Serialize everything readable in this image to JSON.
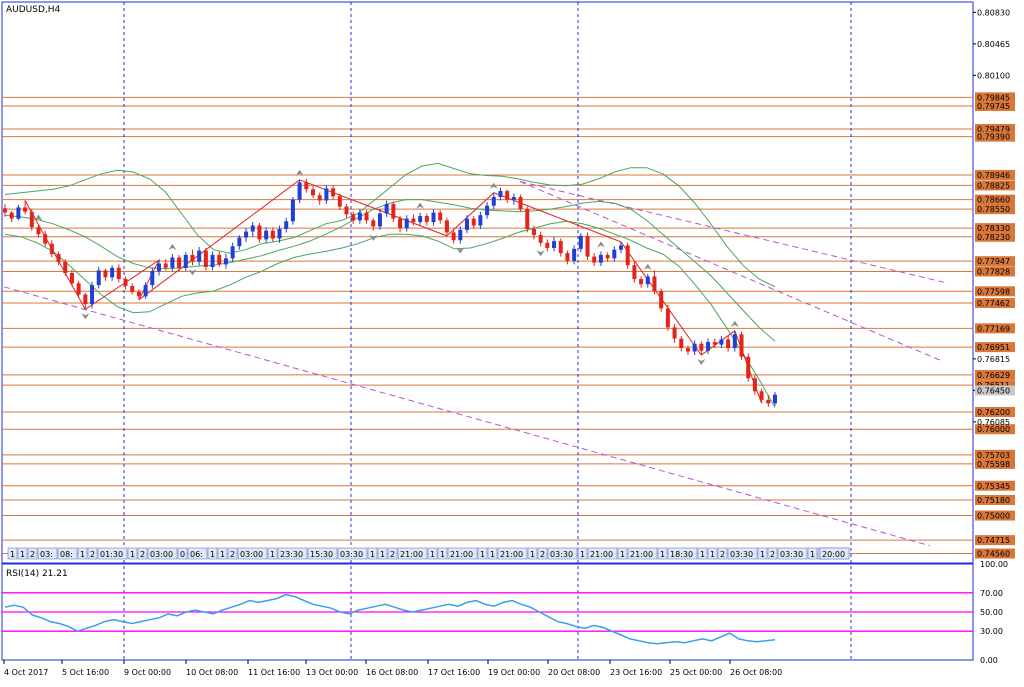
{
  "symbol_title": "AUDUSD,H4",
  "rsi_title": "RSI(14) 21.21",
  "colors": {
    "frame": "#1e2cd6",
    "bull_candle": "#1f3fd6",
    "bear_candle": "#e3241c",
    "level_line": "#d9773a",
    "band": "#4aa564",
    "trend_line": "#b454d6",
    "period_sep": "#2430d6",
    "rsi_line": "#3aa0e6",
    "rsi_level": "#ff00ff",
    "fractal": "#888888",
    "zigzag": "#e3241c"
  },
  "chart_data": {
    "type": "candlestick",
    "symbol": "AUDUSD",
    "timeframe": "H4",
    "ylim": [
      0.7445,
      0.8095
    ],
    "price_axis_ticks": [
      0.8083,
      0.80465,
      0.801,
      0.76815,
      0.7645,
      0.76085
    ],
    "horizontal_levels": [
      "0.79845",
      "0.79745",
      "0.79479",
      "0.79390",
      "0.78946",
      "0.78825",
      "0.78660",
      "0.78550",
      "0.78330",
      "0.78230",
      "0.77947",
      "0.77828",
      "0.77598",
      "0.77462",
      "0.77169",
      "0.76951",
      "0.76629",
      "0.76511",
      "0.76200",
      "0.76000",
      "0.75703",
      "0.75598",
      "0.75345",
      "0.75180",
      "0.75000",
      "0.74715",
      "0.74560"
    ],
    "current_price": "0.76450",
    "time_labels": [
      "4 Oct 2017",
      "5 Oct 16:00",
      "9 Oct 00:00",
      "10 Oct 08:00",
      "11 Oct 16:00",
      "13 Oct 00:00",
      "16 Oct 08:00",
      "17 Oct 16:00",
      "19 Oct 00:00",
      "20 Oct 08:00",
      "23 Oct 16:00",
      "25 Oct 00:00",
      "26 Oct 08:00"
    ],
    "time_markers": [
      "1",
      "1",
      "2",
      "03:",
      "08:",
      "1",
      "2",
      "01:30",
      "1",
      "2",
      "03:00",
      "0",
      "06:",
      "1",
      "1",
      "2",
      "03:00",
      "1",
      "23:30",
      "15:30",
      "03:30",
      "1",
      "1",
      "2",
      "21:00",
      "1",
      "1",
      "21:00",
      "1",
      "1",
      "21:00",
      "1",
      "2",
      "03:30",
      "1",
      "21:00",
      "1",
      "21:00",
      "1",
      "18:30",
      "1",
      "1",
      "2",
      "03:30",
      "1",
      "2",
      "03:30",
      "1",
      "2",
      "03:30",
      "1",
      "20:00"
    ],
    "candles": [
      [
        0.7856,
        0.7861,
        0.7846,
        0.7851
      ],
      [
        0.7851,
        0.7853,
        0.784,
        0.7844
      ],
      [
        0.7844,
        0.786,
        0.7842,
        0.7857
      ],
      [
        0.7857,
        0.7865,
        0.7849,
        0.7852
      ],
      [
        0.7852,
        0.7855,
        0.783,
        0.7834
      ],
      [
        0.7834,
        0.7837,
        0.7822,
        0.7826
      ],
      [
        0.7826,
        0.783,
        0.7812,
        0.7815
      ],
      [
        0.7815,
        0.7819,
        0.7799,
        0.7803
      ],
      [
        0.7803,
        0.7806,
        0.779,
        0.7794
      ],
      [
        0.7794,
        0.7797,
        0.7778,
        0.7781
      ],
      [
        0.7781,
        0.7785,
        0.7766,
        0.7769
      ],
      [
        0.7769,
        0.7772,
        0.7752,
        0.7756
      ],
      [
        0.7756,
        0.7758,
        0.7739,
        0.7745
      ],
      [
        0.7745,
        0.7771,
        0.774,
        0.7767
      ],
      [
        0.7767,
        0.7788,
        0.7763,
        0.7784
      ],
      [
        0.7784,
        0.7786,
        0.7772,
        0.7776
      ],
      [
        0.7776,
        0.779,
        0.7772,
        0.7787
      ],
      [
        0.7787,
        0.7791,
        0.777,
        0.7774
      ],
      [
        0.7774,
        0.7777,
        0.7762,
        0.7766
      ],
      [
        0.7766,
        0.7769,
        0.7756,
        0.7759
      ],
      [
        0.7759,
        0.7762,
        0.775,
        0.7754
      ],
      [
        0.7754,
        0.777,
        0.7751,
        0.7767
      ],
      [
        0.7767,
        0.7787,
        0.7763,
        0.7783
      ],
      [
        0.7783,
        0.7796,
        0.7778,
        0.7792
      ],
      [
        0.7792,
        0.7797,
        0.7784,
        0.7787
      ],
      [
        0.7787,
        0.7803,
        0.7783,
        0.7799
      ],
      [
        0.7799,
        0.7802,
        0.7783,
        0.7787
      ],
      [
        0.7787,
        0.7805,
        0.7783,
        0.7802
      ],
      [
        0.7802,
        0.7808,
        0.779,
        0.7794
      ],
      [
        0.7794,
        0.7811,
        0.779,
        0.7807
      ],
      [
        0.7807,
        0.781,
        0.7784,
        0.7788
      ],
      [
        0.7788,
        0.7806,
        0.7784,
        0.7802
      ],
      [
        0.7802,
        0.7806,
        0.7788,
        0.7791
      ],
      [
        0.7791,
        0.7803,
        0.7786,
        0.7798
      ],
      [
        0.7798,
        0.7816,
        0.7794,
        0.7812
      ],
      [
        0.7812,
        0.7825,
        0.7808,
        0.7822
      ],
      [
        0.7822,
        0.7833,
        0.7817,
        0.7829
      ],
      [
        0.7829,
        0.784,
        0.7823,
        0.7836
      ],
      [
        0.7836,
        0.7839,
        0.7816,
        0.782
      ],
      [
        0.782,
        0.7834,
        0.7816,
        0.783
      ],
      [
        0.783,
        0.7834,
        0.7817,
        0.7821
      ],
      [
        0.7821,
        0.7836,
        0.7816,
        0.7832
      ],
      [
        0.7832,
        0.7845,
        0.7828,
        0.7841
      ],
      [
        0.7841,
        0.7869,
        0.7837,
        0.7866
      ],
      [
        0.7866,
        0.7889,
        0.7862,
        0.7886
      ],
      [
        0.7886,
        0.789,
        0.7874,
        0.7878
      ],
      [
        0.7878,
        0.7882,
        0.7868,
        0.7871
      ],
      [
        0.7871,
        0.7874,
        0.786,
        0.7865
      ],
      [
        0.7865,
        0.7883,
        0.7861,
        0.7879
      ],
      [
        0.7879,
        0.7882,
        0.7866,
        0.787
      ],
      [
        0.787,
        0.7873,
        0.7854,
        0.7858
      ],
      [
        0.7858,
        0.7861,
        0.7845,
        0.7849
      ],
      [
        0.7849,
        0.7852,
        0.7838,
        0.7842
      ],
      [
        0.7842,
        0.7855,
        0.7838,
        0.7851
      ],
      [
        0.7851,
        0.7854,
        0.7838,
        0.7842
      ],
      [
        0.7842,
        0.7845,
        0.783,
        0.7835
      ],
      [
        0.7835,
        0.7855,
        0.7831,
        0.785
      ],
      [
        0.785,
        0.7865,
        0.7846,
        0.7861
      ],
      [
        0.7861,
        0.7864,
        0.784,
        0.7844
      ],
      [
        0.7844,
        0.7847,
        0.7828,
        0.7833
      ],
      [
        0.7833,
        0.7848,
        0.7829,
        0.7844
      ],
      [
        0.7844,
        0.7849,
        0.7836,
        0.784
      ],
      [
        0.784,
        0.7851,
        0.7836,
        0.7847
      ],
      [
        0.7847,
        0.785,
        0.7836,
        0.784
      ],
      [
        0.784,
        0.7855,
        0.7836,
        0.7851
      ],
      [
        0.7851,
        0.7854,
        0.7838,
        0.7842
      ],
      [
        0.7842,
        0.7845,
        0.7824,
        0.7828
      ],
      [
        0.7828,
        0.7831,
        0.7815,
        0.7819
      ],
      [
        0.7819,
        0.7835,
        0.7815,
        0.7831
      ],
      [
        0.7831,
        0.7848,
        0.7827,
        0.7844
      ],
      [
        0.7844,
        0.7847,
        0.7832,
        0.7836
      ],
      [
        0.7836,
        0.7852,
        0.7832,
        0.7848
      ],
      [
        0.7848,
        0.7863,
        0.7844,
        0.7859
      ],
      [
        0.7859,
        0.7874,
        0.7855,
        0.7869
      ],
      [
        0.7869,
        0.788,
        0.7865,
        0.7876
      ],
      [
        0.7876,
        0.7878,
        0.7862,
        0.7866
      ],
      [
        0.7866,
        0.7873,
        0.786,
        0.7869
      ],
      [
        0.7869,
        0.7872,
        0.7852,
        0.7855
      ],
      [
        0.7855,
        0.7858,
        0.7828,
        0.7832
      ],
      [
        0.7832,
        0.7836,
        0.782,
        0.7825
      ],
      [
        0.7825,
        0.7829,
        0.7812,
        0.7816
      ],
      [
        0.7816,
        0.782,
        0.7806,
        0.781
      ],
      [
        0.781,
        0.7823,
        0.7806,
        0.7818
      ],
      [
        0.7818,
        0.7821,
        0.78,
        0.7804
      ],
      [
        0.7804,
        0.7807,
        0.7791,
        0.7795
      ],
      [
        0.7795,
        0.7813,
        0.7791,
        0.7809
      ],
      [
        0.7809,
        0.7827,
        0.7805,
        0.7824
      ],
      [
        0.7824,
        0.7828,
        0.7796,
        0.78
      ],
      [
        0.78,
        0.7804,
        0.7789,
        0.7793
      ],
      [
        0.7793,
        0.7806,
        0.7789,
        0.7802
      ],
      [
        0.7802,
        0.7805,
        0.7794,
        0.7798
      ],
      [
        0.7798,
        0.7812,
        0.7794,
        0.7808
      ],
      [
        0.7808,
        0.7817,
        0.7804,
        0.7813
      ],
      [
        0.7813,
        0.7816,
        0.7786,
        0.779
      ],
      [
        0.779,
        0.7794,
        0.777,
        0.7774
      ],
      [
        0.7774,
        0.7777,
        0.7764,
        0.7768
      ],
      [
        0.7768,
        0.778,
        0.7764,
        0.7777
      ],
      [
        0.7777,
        0.7784,
        0.7756,
        0.776
      ],
      [
        0.776,
        0.7763,
        0.7736,
        0.774
      ],
      [
        0.774,
        0.7744,
        0.7714,
        0.7718
      ],
      [
        0.7718,
        0.7722,
        0.77,
        0.7705
      ],
      [
        0.7705,
        0.7708,
        0.769,
        0.7694
      ],
      [
        0.7694,
        0.7697,
        0.7686,
        0.769
      ],
      [
        0.769,
        0.7703,
        0.7686,
        0.7699
      ],
      [
        0.7699,
        0.7702,
        0.7686,
        0.7691
      ],
      [
        0.7691,
        0.7705,
        0.7687,
        0.7701
      ],
      [
        0.7701,
        0.7705,
        0.7694,
        0.7698
      ],
      [
        0.7698,
        0.7708,
        0.7694,
        0.7704
      ],
      [
        0.7704,
        0.7708,
        0.769,
        0.7694
      ],
      [
        0.7694,
        0.7714,
        0.769,
        0.771
      ],
      [
        0.771,
        0.7713,
        0.768,
        0.7684
      ],
      [
        0.7684,
        0.7688,
        0.7655,
        0.7659
      ],
      [
        0.7659,
        0.7663,
        0.764,
        0.7644
      ],
      [
        0.7644,
        0.7647,
        0.763,
        0.7634
      ],
      [
        0.7634,
        0.764,
        0.7626,
        0.763
      ],
      [
        0.763,
        0.7643,
        0.7627,
        0.764
      ]
    ],
    "bollinger": {
      "upper": [
        0.7872,
        0.7874,
        0.7876,
        0.7878,
        0.7882,
        0.7889,
        0.7896,
        0.79,
        0.7898,
        0.789,
        0.7875,
        0.785,
        0.7825,
        0.7808,
        0.7804,
        0.7808,
        0.7815,
        0.7818,
        0.7822,
        0.783,
        0.7838,
        0.7842,
        0.785,
        0.7865,
        0.788,
        0.7895,
        0.7905,
        0.7908,
        0.7902,
        0.7896,
        0.7894,
        0.7893,
        0.789,
        0.7886,
        0.7883,
        0.7882,
        0.7884,
        0.789,
        0.7898,
        0.7903,
        0.7903,
        0.7896,
        0.7882,
        0.7862,
        0.7838,
        0.7812,
        0.779,
        0.7774,
        0.7765
      ],
      "middle": [
        0.7848,
        0.7846,
        0.7843,
        0.7838,
        0.7831,
        0.7823,
        0.7812,
        0.78,
        0.7792,
        0.7787,
        0.7786,
        0.7787,
        0.7789,
        0.779,
        0.7793,
        0.7797,
        0.7801,
        0.7807,
        0.7812,
        0.7818,
        0.7826,
        0.7835,
        0.7845,
        0.7855,
        0.7862,
        0.7866,
        0.7866,
        0.7863,
        0.786,
        0.7856,
        0.7854,
        0.7853,
        0.7852,
        0.7853,
        0.7855,
        0.7858,
        0.7862,
        0.7864,
        0.7862,
        0.7855,
        0.7842,
        0.7826,
        0.781,
        0.7794,
        0.7778,
        0.7758,
        0.7738,
        0.7718,
        0.7702
      ],
      "lower": [
        0.7826,
        0.7823,
        0.7816,
        0.7806,
        0.779,
        0.7773,
        0.7756,
        0.7742,
        0.7735,
        0.7736,
        0.7745,
        0.7754,
        0.7758,
        0.776,
        0.7767,
        0.7776,
        0.7783,
        0.7792,
        0.7799,
        0.7803,
        0.7806,
        0.781,
        0.7815,
        0.7822,
        0.7826,
        0.7826,
        0.7824,
        0.7818,
        0.7809,
        0.781,
        0.7815,
        0.7821,
        0.7828,
        0.7833,
        0.7838,
        0.7841,
        0.7838,
        0.7833,
        0.7826,
        0.7819,
        0.781,
        0.7803,
        0.7789,
        0.7768,
        0.7745,
        0.7717,
        0.7688,
        0.7658,
        0.7625
      ]
    },
    "rsi": {
      "period": 14,
      "current": 21.21,
      "levels": [
        70,
        50,
        30
      ],
      "ylim": [
        0,
        100
      ],
      "axis_ticks": [
        100,
        70,
        50,
        30,
        0
      ],
      "values": [
        55,
        57,
        55,
        47,
        44,
        40,
        38,
        35,
        30,
        33,
        36,
        40,
        42,
        40,
        38,
        40,
        42,
        44,
        48,
        46,
        50,
        52,
        50,
        48,
        52,
        55,
        58,
        62,
        60,
        62,
        64,
        68,
        66,
        62,
        58,
        56,
        54,
        50,
        48,
        52,
        54,
        56,
        58,
        55,
        52,
        50,
        52,
        54,
        56,
        58,
        56,
        60,
        62,
        58,
        56,
        60,
        62,
        58,
        55,
        50,
        45,
        40,
        38,
        35,
        33,
        36,
        34,
        30,
        26,
        22,
        20,
        18,
        17,
        18,
        19,
        18,
        20,
        22,
        20,
        24,
        28,
        22,
        20,
        19,
        20,
        21
      ]
    }
  }
}
